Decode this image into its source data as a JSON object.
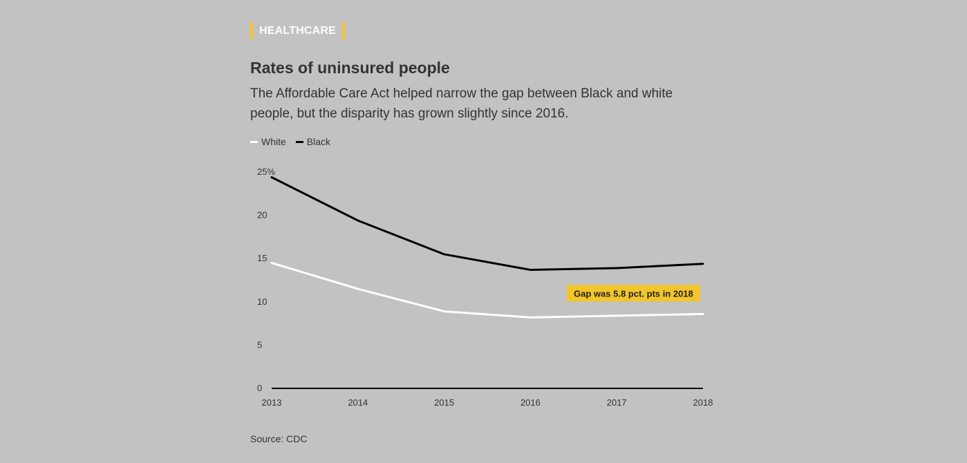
{
  "tag": "HEALTHCARE",
  "title": "Rates of uninsured people",
  "subtitle": "The Affordable Care Act helped narrow the gap between Black and white people, but the disparity has grown slightly since 2016.",
  "source": "Source: CDC",
  "colors": {
    "white_series": "#ffffff",
    "black_series": "#000000",
    "accent": "#f2c52b",
    "background": "#c2c2c2"
  },
  "chart_data": {
    "type": "line",
    "x": [
      2013,
      2014,
      2015,
      2016,
      2017,
      2018
    ],
    "x_tick_labels": [
      "2013",
      "2014",
      "2015",
      "2016",
      "2017",
      "2018"
    ],
    "y_ticks": [
      0,
      5,
      10,
      15,
      20,
      25
    ],
    "y_tick_labels": [
      "0",
      "5",
      "10",
      "15",
      "20",
      "25%"
    ],
    "ylim": [
      0,
      25
    ],
    "xlim": [
      2013,
      2018
    ],
    "grid": false,
    "legend_placement": "top-left",
    "series": [
      {
        "name": "White",
        "color": "#ffffff",
        "values": [
          14.5,
          11.5,
          8.9,
          8.2,
          8.4,
          8.6
        ]
      },
      {
        "name": "Black",
        "color": "#000000",
        "values": [
          24.4,
          19.4,
          15.5,
          13.7,
          13.9,
          14.4
        ]
      }
    ],
    "annotation": {
      "text": "Gap was 5.8 pct. pts in 2018",
      "x": 2018,
      "y": 11.0
    }
  }
}
